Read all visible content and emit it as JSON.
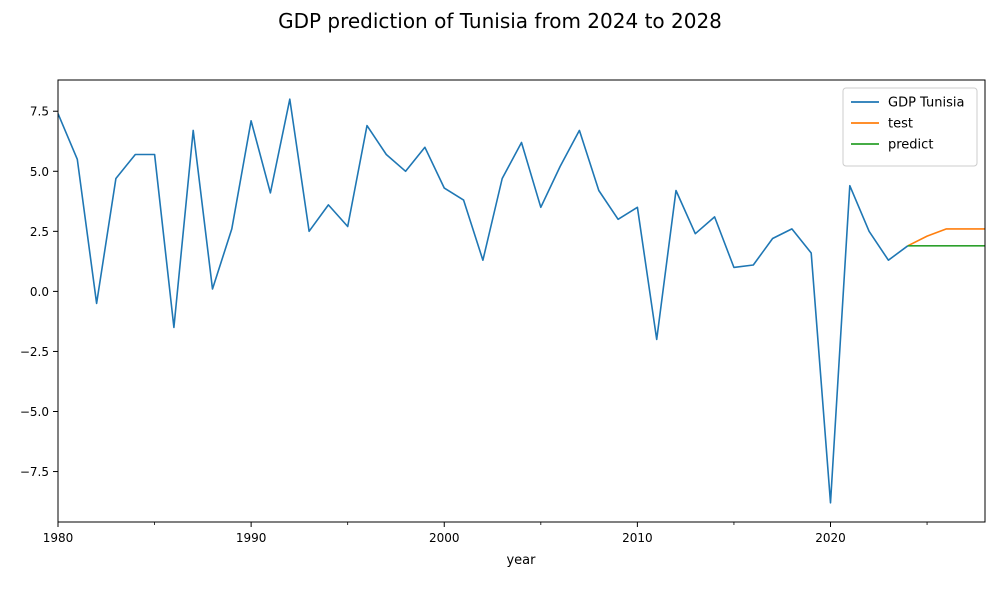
{
  "chart_data": {
    "type": "line",
    "title": "GDP prediction of Tunisia from 2024 to 2028",
    "xlabel": "year",
    "ylabel": "",
    "xlim": [
      1980,
      2028
    ],
    "ylim": [
      -9.6,
      8.8
    ],
    "x_ticks": [
      1980,
      1990,
      2000,
      2010,
      2020
    ],
    "x_tick_labels": [
      "1980",
      "1990",
      "2000",
      "2010",
      "2020"
    ],
    "x_minor_ticks": [
      1985,
      1995,
      2005,
      2015,
      2025
    ],
    "y_ticks": [
      7.5,
      5.0,
      2.5,
      0.0,
      -2.5,
      -5.0,
      -7.5
    ],
    "y_tick_labels": [
      "7.5",
      "5.0",
      "2.5",
      "0.0",
      "−2.5",
      "−5.0",
      "−7.5"
    ],
    "grid": false,
    "legend_position": "top-right",
    "series": [
      {
        "name": "GDP Tunisia",
        "color": "#1f77b4",
        "x": [
          1980,
          1981,
          1982,
          1983,
          1984,
          1985,
          1986,
          1987,
          1988,
          1989,
          1990,
          1991,
          1992,
          1993,
          1994,
          1995,
          1996,
          1997,
          1998,
          1999,
          2000,
          2001,
          2002,
          2003,
          2004,
          2005,
          2006,
          2007,
          2008,
          2009,
          2010,
          2011,
          2012,
          2013,
          2014,
          2015,
          2016,
          2017,
          2018,
          2019,
          2020,
          2021,
          2022,
          2023,
          2024
        ],
        "values": [
          7.4,
          5.5,
          -0.5,
          4.7,
          5.7,
          5.7,
          -1.5,
          6.7,
          0.1,
          2.6,
          7.1,
          4.1,
          8.0,
          2.5,
          3.6,
          2.7,
          6.9,
          5.7,
          5.0,
          6.0,
          4.3,
          3.8,
          1.3,
          4.7,
          6.2,
          3.5,
          5.2,
          6.7,
          4.2,
          3.0,
          3.5,
          -2.0,
          4.2,
          2.4,
          3.1,
          1.0,
          1.1,
          2.2,
          2.6,
          1.6,
          -8.8,
          4.4,
          2.5,
          1.3,
          1.9
        ]
      },
      {
        "name": "test",
        "color": "#ff7f0e",
        "x": [
          2024,
          2025,
          2026,
          2027,
          2028
        ],
        "values": [
          1.9,
          2.3,
          2.6,
          2.6,
          2.6
        ]
      },
      {
        "name": "predict",
        "color": "#2ca02c",
        "x": [
          2024,
          2025,
          2026,
          2027,
          2028
        ],
        "values": [
          1.9,
          1.9,
          1.9,
          1.9,
          1.9
        ]
      }
    ]
  }
}
